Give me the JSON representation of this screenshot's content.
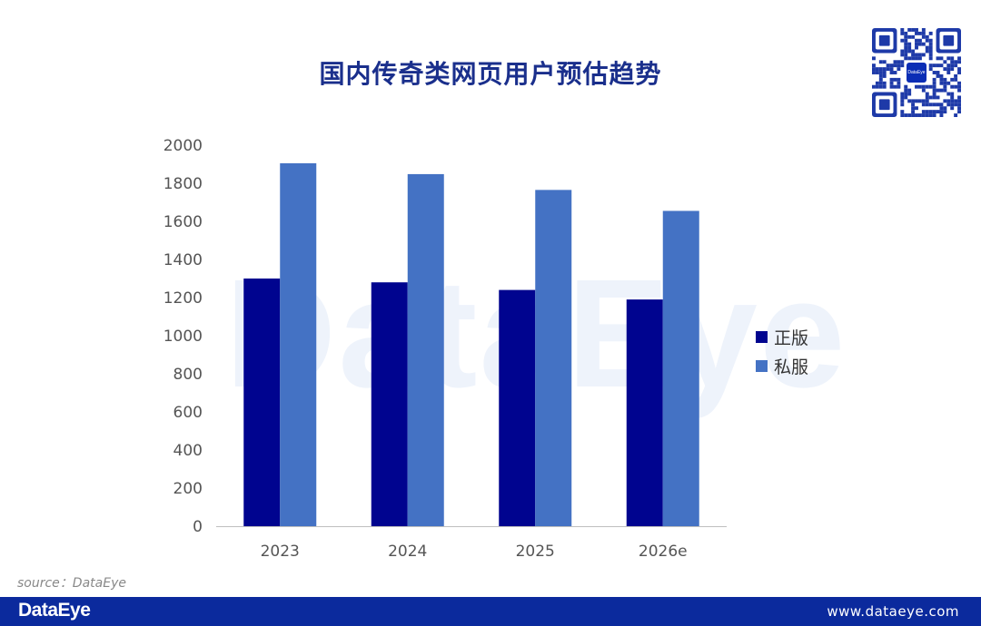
{
  "chart_data": {
    "type": "bar",
    "title": "国内传奇类网页用户预估趋势",
    "categories": [
      "2023",
      "2024",
      "2025",
      "2026e"
    ],
    "series": [
      {
        "name": "正版",
        "values": [
          1300,
          1280,
          1240,
          1190
        ],
        "color": "#00048f"
      },
      {
        "name": "私服",
        "values": [
          1905,
          1848,
          1765,
          1655
        ],
        "color": "#4472c4"
      }
    ],
    "yticks": [
      "0",
      "200",
      "400",
      "600",
      "800",
      "1000",
      "1200",
      "1400",
      "1600",
      "1800",
      "2000"
    ],
    "ylim": [
      0,
      2000
    ],
    "grid": false,
    "legend_position": "right"
  },
  "watermark": "DataEye",
  "qr_badge": "DataEye",
  "source": "source：DataEye",
  "footer": {
    "logo": "DataEye",
    "url": "www.dataeye.com",
    "background": "#0b2a9d"
  }
}
